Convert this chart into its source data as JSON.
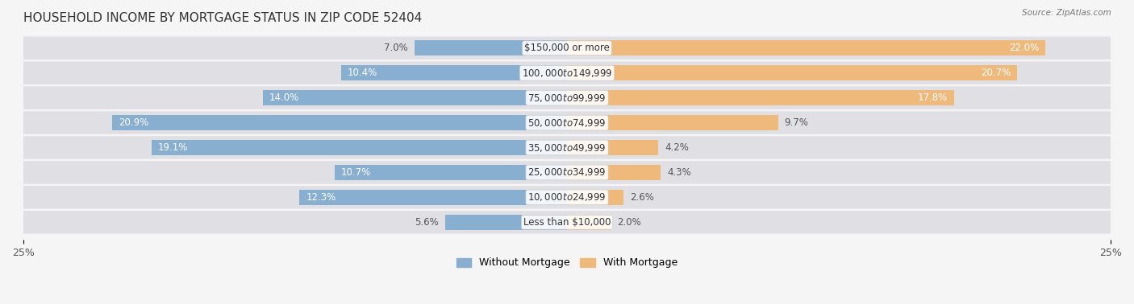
{
  "title": "HOUSEHOLD INCOME BY MORTGAGE STATUS IN ZIP CODE 52404",
  "source": "Source: ZipAtlas.com",
  "categories": [
    "Less than $10,000",
    "$10,000 to $24,999",
    "$25,000 to $34,999",
    "$35,000 to $49,999",
    "$50,000 to $74,999",
    "$75,000 to $99,999",
    "$100,000 to $149,999",
    "$150,000 or more"
  ],
  "without_mortgage": [
    5.6,
    12.3,
    10.7,
    19.1,
    20.9,
    14.0,
    10.4,
    7.0
  ],
  "with_mortgage": [
    2.0,
    2.6,
    4.3,
    4.2,
    9.7,
    17.8,
    20.7,
    22.0
  ],
  "without_color": "#88aed0",
  "with_color": "#f0b97c",
  "bg_color": "#f0f0f0",
  "bar_bg_color": "#e0e0e4",
  "xlim": 25.0,
  "legend_labels": [
    "Without Mortgage",
    "With Mortgage"
  ],
  "title_fontsize": 11,
  "axis_label_fontsize": 9,
  "bar_label_fontsize": 8.5,
  "category_fontsize": 8.5
}
